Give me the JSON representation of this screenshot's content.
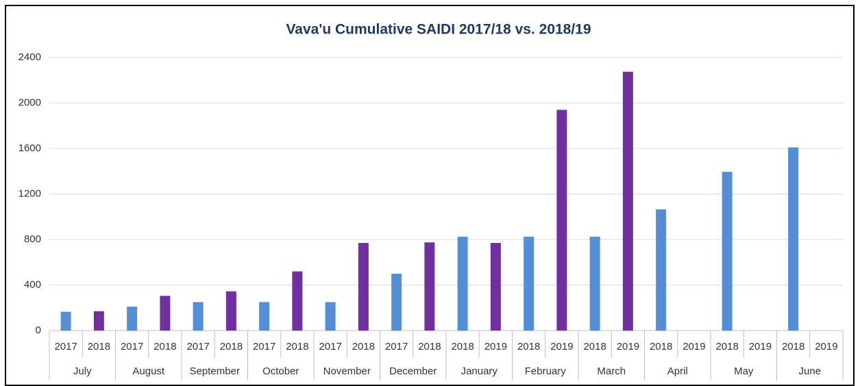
{
  "chart_data": {
    "type": "bar",
    "title": "Vava'u Cumulative SAIDI 2017/18 vs. 2018/19",
    "categories": [
      "July",
      "August",
      "September",
      "October",
      "November",
      "December",
      "January",
      "February",
      "March",
      "April",
      "May",
      "June"
    ],
    "sublabels": [
      [
        "2017",
        "2018"
      ],
      [
        "2017",
        "2018"
      ],
      [
        "2017",
        "2018"
      ],
      [
        "2017",
        "2018"
      ],
      [
        "2017",
        "2018"
      ],
      [
        "2017",
        "2018"
      ],
      [
        "2018",
        "2019"
      ],
      [
        "2018",
        "2019"
      ],
      [
        "2018",
        "2019"
      ],
      [
        "2018",
        "2019"
      ],
      [
        "2018",
        "2019"
      ],
      [
        "2018",
        "2019"
      ]
    ],
    "series": [
      {
        "color": "#558ed5",
        "values": [
          165,
          210,
          250,
          250,
          250,
          500,
          825,
          825,
          825,
          1065,
          1395,
          1610
        ]
      },
      {
        "color": "#7030a0",
        "values": [
          170,
          305,
          345,
          520,
          770,
          775,
          770,
          1940,
          2275,
          null,
          null,
          null
        ]
      }
    ],
    "ylim": [
      0,
      2400
    ],
    "yticks": [
      0,
      400,
      800,
      1200,
      1600,
      2000,
      2400
    ],
    "grid": true
  }
}
